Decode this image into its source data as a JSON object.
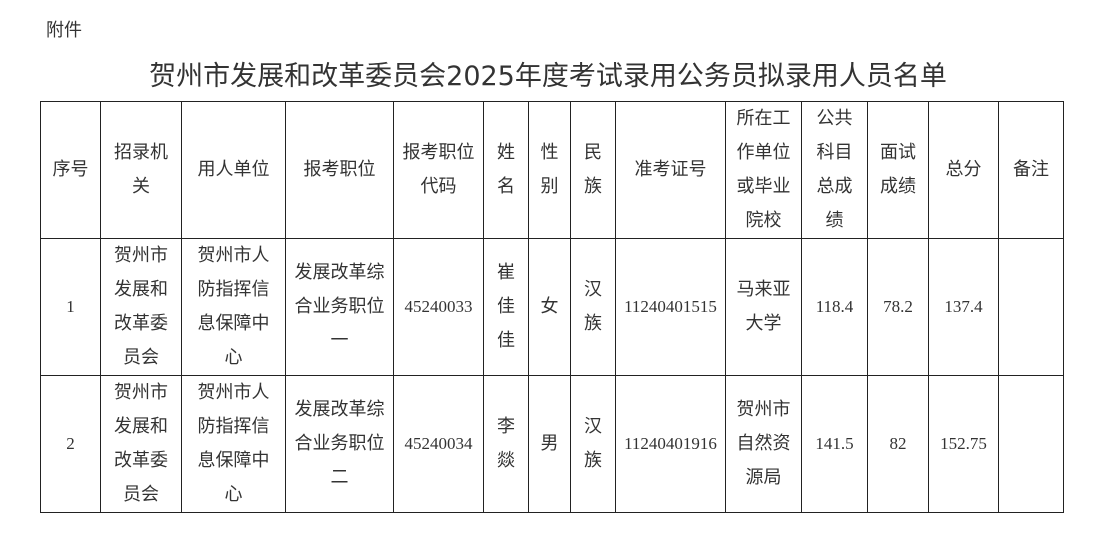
{
  "attachment_label": "附件",
  "title": "贺州市发展和改革委员会2025年度考试录用公务员拟录用人员名单",
  "table": {
    "headers": [
      "序号",
      "招录机关",
      "用人单位",
      "报考职位",
      "报考职位代码",
      "姓名",
      "性别",
      "民族",
      "准考证号",
      "所在工作单位或毕业院校",
      "公共科目总成绩",
      "面试成绩",
      "总分",
      "备注"
    ],
    "rows": [
      [
        "1",
        "贺州市发展和改革委员会",
        "贺州市人防指挥信息保障中心",
        "发展改革综合业务职位一",
        "45240033",
        "崔佳佳",
        "女",
        "汉族",
        "11240401515",
        "马来亚大学",
        "118.4",
        "78.2",
        "137.4",
        ""
      ],
      [
        "2",
        "贺州市发展和改革委员会",
        "贺州市人防指挥信息保障中心",
        "发展改革综合业务职位二",
        "45240034",
        "李燚",
        "男",
        "汉族",
        "11240401916",
        "贺州市自然资源局",
        "141.5",
        "82",
        "152.75",
        ""
      ]
    ]
  }
}
